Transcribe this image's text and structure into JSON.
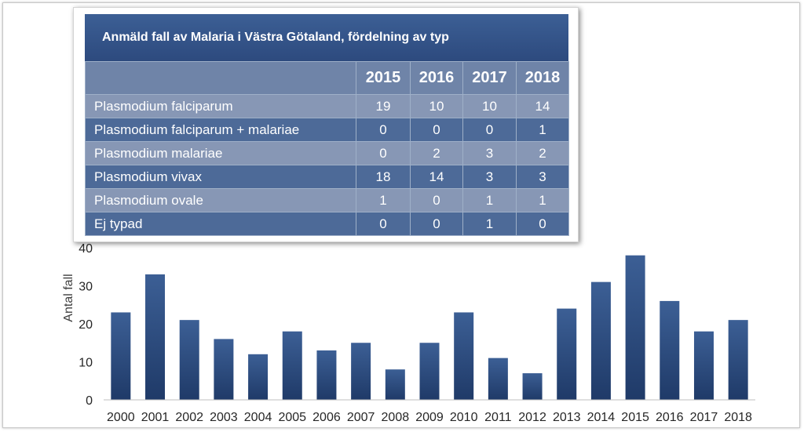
{
  "table": {
    "title": "Anmäld fall av Malaria i Västra Götaland, fördelning av typ",
    "years": [
      "2015",
      "2016",
      "2017",
      "2018"
    ],
    "rows": [
      {
        "name": "Plasmodium falciparum",
        "values": [
          "19",
          "10",
          "10",
          "14"
        ]
      },
      {
        "name": "Plasmodium falciparum + malariae",
        "values": [
          "0",
          "0",
          "0",
          "1"
        ]
      },
      {
        "name": "Plasmodium malariae",
        "values": [
          "0",
          "2",
          "3",
          "2"
        ]
      },
      {
        "name": "Plasmodium vivax",
        "values": [
          "18",
          "14",
          "3",
          "3"
        ]
      },
      {
        "name": "Plasmodium ovale",
        "values": [
          "1",
          "0",
          "1",
          "1"
        ]
      },
      {
        "name": "Ej typad",
        "values": [
          "0",
          "0",
          "1",
          "0"
        ]
      }
    ]
  },
  "chart_data": {
    "type": "bar",
    "categories": [
      "2000",
      "2001",
      "2002",
      "2003",
      "2004",
      "2005",
      "2006",
      "2007",
      "2008",
      "2009",
      "2010",
      "2011",
      "2012",
      "2013",
      "2014",
      "2015",
      "2016",
      "2017",
      "2018"
    ],
    "values": [
      23,
      33,
      21,
      16,
      12,
      18,
      13,
      15,
      8,
      15,
      23,
      11,
      7,
      24,
      31,
      38,
      26,
      18,
      21
    ],
    "xlabel": "",
    "ylabel": "Antal fall",
    "ylim": [
      0,
      40
    ],
    "yticks": [
      0,
      10,
      20,
      30,
      40
    ],
    "grid": false,
    "bar_color_top": "#3c5f95",
    "bar_color_bottom": "#1f3a68"
  }
}
